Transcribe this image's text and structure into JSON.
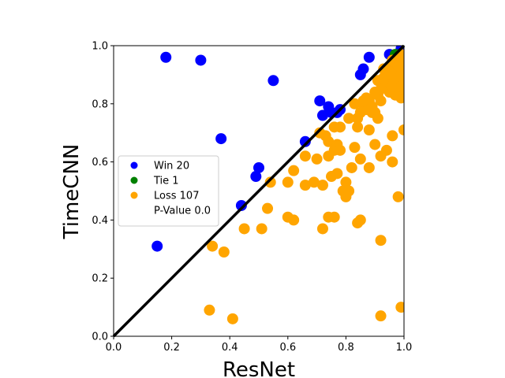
{
  "chart_data": {
    "type": "scatter",
    "xlabel": "ResNet",
    "ylabel": "TimeCNN",
    "xlim": [
      0,
      1
    ],
    "ylim": [
      0,
      1
    ],
    "xticks": [
      "0.0",
      "0.2",
      "0.4",
      "0.6",
      "0.8",
      "1.0"
    ],
    "yticks": [
      "0.0",
      "0.2",
      "0.4",
      "0.6",
      "0.8",
      "1.0"
    ],
    "diagonal": true,
    "grid": false,
    "legend_position": "center-left",
    "legend": [
      {
        "label": "Win 20",
        "color": "#0000ff"
      },
      {
        "label": "Tie 1",
        "color": "#008000"
      },
      {
        "label": "Loss 107",
        "color": "#ffa500"
      },
      {
        "label": "P-Value 0.0",
        "color": "none"
      }
    ],
    "series": [
      {
        "color": "#0000ff",
        "points": [
          [
            0.15,
            0.31
          ],
          [
            0.18,
            0.96
          ],
          [
            0.3,
            0.95
          ],
          [
            0.37,
            0.68
          ],
          [
            0.44,
            0.45
          ],
          [
            0.49,
            0.55
          ],
          [
            0.5,
            0.58
          ],
          [
            0.55,
            0.88
          ],
          [
            0.66,
            0.67
          ],
          [
            0.71,
            0.81
          ],
          [
            0.72,
            0.76
          ],
          [
            0.74,
            0.79
          ],
          [
            0.75,
            0.77
          ],
          [
            0.77,
            0.77
          ],
          [
            0.78,
            0.78
          ],
          [
            0.85,
            0.9
          ],
          [
            0.86,
            0.92
          ],
          [
            0.88,
            0.96
          ],
          [
            0.95,
            0.97
          ],
          [
            0.99,
            0.99
          ]
        ]
      },
      {
        "color": "#008000",
        "points": [
          [
            0.97,
            0.97
          ]
        ]
      },
      {
        "color": "#ffa500",
        "points": [
          [
            0.33,
            0.09
          ],
          [
            0.34,
            0.31
          ],
          [
            0.38,
            0.29
          ],
          [
            0.41,
            0.06
          ],
          [
            0.45,
            0.37
          ],
          [
            0.51,
            0.37
          ],
          [
            0.53,
            0.44
          ],
          [
            0.54,
            0.53
          ],
          [
            0.6,
            0.53
          ],
          [
            0.6,
            0.41
          ],
          [
            0.62,
            0.4
          ],
          [
            0.62,
            0.57
          ],
          [
            0.66,
            0.62
          ],
          [
            0.66,
            0.52
          ],
          [
            0.69,
            0.53
          ],
          [
            0.7,
            0.61
          ],
          [
            0.71,
            0.7
          ],
          [
            0.72,
            0.52
          ],
          [
            0.72,
            0.37
          ],
          [
            0.73,
            0.69
          ],
          [
            0.74,
            0.67
          ],
          [
            0.74,
            0.62
          ],
          [
            0.74,
            0.41
          ],
          [
            0.75,
            0.55
          ],
          [
            0.76,
            0.72
          ],
          [
            0.76,
            0.64
          ],
          [
            0.76,
            0.41
          ],
          [
            0.77,
            0.56
          ],
          [
            0.77,
            0.66
          ],
          [
            0.78,
            0.64
          ],
          [
            0.78,
            0.72
          ],
          [
            0.79,
            0.5
          ],
          [
            0.8,
            0.48
          ],
          [
            0.8,
            0.53
          ],
          [
            0.81,
            0.5
          ],
          [
            0.81,
            0.75
          ],
          [
            0.82,
            0.58
          ],
          [
            0.83,
            0.8
          ],
          [
            0.83,
            0.65
          ],
          [
            0.84,
            0.39
          ],
          [
            0.84,
            0.72
          ],
          [
            0.84,
            0.75
          ],
          [
            0.85,
            0.4
          ],
          [
            0.85,
            0.61
          ],
          [
            0.85,
            0.77
          ],
          [
            0.86,
            0.8
          ],
          [
            0.87,
            0.78
          ],
          [
            0.88,
            0.58
          ],
          [
            0.88,
            0.71
          ],
          [
            0.88,
            0.81
          ],
          [
            0.89,
            0.77
          ],
          [
            0.89,
            0.79
          ],
          [
            0.9,
            0.66
          ],
          [
            0.9,
            0.77
          ],
          [
            0.91,
            0.83
          ],
          [
            0.91,
            0.75
          ],
          [
            0.91,
            0.88
          ],
          [
            0.92,
            0.81
          ],
          [
            0.92,
            0.33
          ],
          [
            0.92,
            0.07
          ],
          [
            0.92,
            0.62
          ],
          [
            0.93,
            0.89
          ],
          [
            0.93,
            0.92
          ],
          [
            0.94,
            0.64
          ],
          [
            0.94,
            0.86
          ],
          [
            0.95,
            0.9
          ],
          [
            0.95,
            0.88
          ],
          [
            0.95,
            0.93
          ],
          [
            0.96,
            0.6
          ],
          [
            0.96,
            0.69
          ],
          [
            0.96,
            0.95
          ],
          [
            0.96,
            0.88
          ],
          [
            0.97,
            0.9
          ],
          [
            0.97,
            0.92
          ],
          [
            0.97,
            0.94
          ],
          [
            0.97,
            0.86
          ],
          [
            0.98,
            0.48
          ],
          [
            0.98,
            0.83
          ],
          [
            0.98,
            0.88
          ],
          [
            0.98,
            0.91
          ],
          [
            0.98,
            0.95
          ],
          [
            0.99,
            0.1
          ],
          [
            0.99,
            0.82
          ],
          [
            0.99,
            0.86
          ],
          [
            0.99,
            0.89
          ],
          [
            0.99,
            0.93
          ],
          [
            0.99,
            0.96
          ],
          [
            1.0,
            0.71
          ],
          [
            1.0,
            0.85
          ],
          [
            1.0,
            0.92
          ],
          [
            0.93,
            0.87
          ],
          [
            0.94,
            0.9
          ],
          [
            0.96,
            0.91
          ],
          [
            0.97,
            0.88
          ],
          [
            0.95,
            0.84
          ],
          [
            0.98,
            0.86
          ],
          [
            0.99,
            0.9
          ],
          [
            1.0,
            0.88
          ],
          [
            0.97,
            0.83
          ],
          [
            0.96,
            0.86
          ],
          [
            0.98,
            0.93
          ],
          [
            0.99,
            0.97
          ],
          [
            1.0,
            0.95
          ],
          [
            0.92,
            0.85
          ],
          [
            0.9,
            0.84
          ],
          [
            0.87,
            0.82
          ],
          [
            0.86,
            0.81
          ]
        ]
      }
    ]
  }
}
